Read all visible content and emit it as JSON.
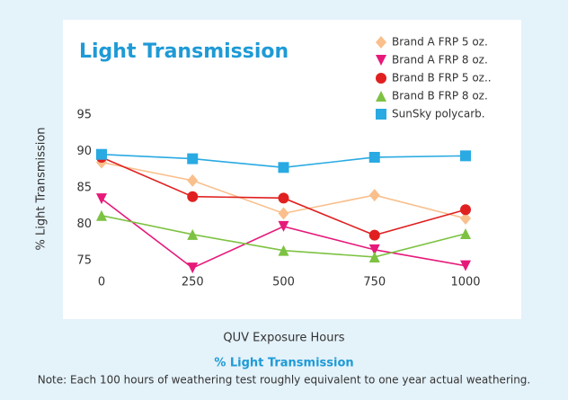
{
  "chart_data": {
    "type": "line",
    "title": "Light Transmission",
    "x_label": "QUV Exposure Hours",
    "y_label": "% Light Transmission",
    "caption": "% Light Transmission",
    "note": "Note: Each 100 hours of weathering test roughly equivalent to one year actual weathering.",
    "x": [
      0,
      250,
      500,
      750,
      1000
    ],
    "xlim": [
      0,
      1000
    ],
    "xticks": [
      0,
      250,
      500,
      750,
      1000
    ],
    "ylim": [
      73,
      96
    ],
    "yticks": [
      75,
      80,
      85,
      90,
      95
    ],
    "legend": "top-right",
    "series": [
      {
        "name": "Brand A FRP 5 oz.",
        "color": "#f9bf8c",
        "marker": "diamond",
        "values": [
          88.5,
          86,
          81.5,
          84,
          80.8
        ]
      },
      {
        "name": "Brand A FRP 8 oz.",
        "color": "#e6197a",
        "marker": "triangle-down",
        "values": [
          83.5,
          74,
          79.7,
          76.5,
          74.3
        ]
      },
      {
        "name": "Brand B FRP 5 oz..",
        "color": "#e02020",
        "marker": "circle",
        "values": [
          89.2,
          83.8,
          83.6,
          78.5,
          82
        ]
      },
      {
        "name": "Brand B FRP 8 oz.",
        "color": "#7dc242",
        "marker": "triangle-up",
        "values": [
          81.2,
          78.6,
          76.4,
          75.5,
          78.7
        ]
      },
      {
        "name": "SunSky polycarb.",
        "color": "#29aae2",
        "marker": "square",
        "values": [
          89.6,
          89,
          87.8,
          89.2,
          89.4
        ]
      }
    ]
  }
}
